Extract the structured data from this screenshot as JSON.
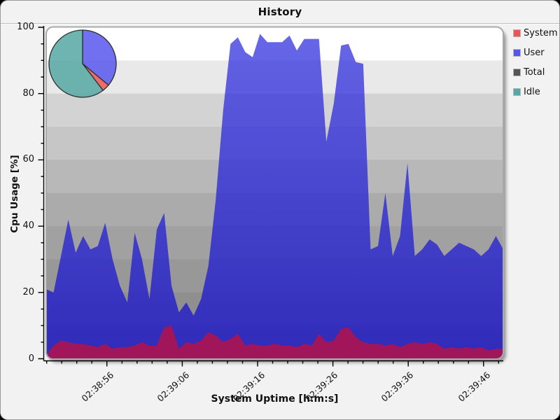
{
  "title": "History",
  "y_axis": {
    "label": "Cpu Usage [%]",
    "tick_labels": [
      "0",
      "20",
      "40",
      "60",
      "80",
      "100"
    ]
  },
  "x_axis": {
    "label": "System Uptime [h:m:s]",
    "tick_labels": [
      "02:38:56",
      "02:39:06",
      "02:39:16",
      "02:39:26",
      "02:39:36",
      "02:39:46"
    ]
  },
  "legend": {
    "items": [
      {
        "label": "System",
        "color": "#ee5555"
      },
      {
        "label": "User",
        "color": "#5757ee"
      },
      {
        "label": "Total",
        "color": "#555555"
      },
      {
        "label": "Idle",
        "color": "#55a8a4"
      }
    ]
  },
  "colors": {
    "user_area_top": "#3c3ce2",
    "user_area_bottom": "#1812c8",
    "user_area_opacity": 0.78,
    "system_area": "#a81455",
    "axis": "#000000",
    "plot_frame": "#a9a9a9",
    "plot_bands": [
      "#ffffff",
      "#e9e9e9",
      "#d3d3d3",
      "#c6c6c6",
      "#b8b8b8",
      "#ababab",
      "#a1a1a1",
      "#989898",
      "#8f8f8f",
      "#868686"
    ]
  },
  "chart_data": {
    "type": "area",
    "title": "History",
    "xlabel": "System Uptime [h:m:s]",
    "ylabel": "Cpu Usage [%]",
    "ylim": [
      0,
      100
    ],
    "grid": "horizontal shaded bands every 10%",
    "legend_position": "right",
    "x_tick_labels": [
      "02:38:56",
      "02:39:06",
      "02:39:16",
      "02:39:26",
      "02:39:36",
      "02:39:46"
    ],
    "y_tick_labels": [
      0,
      20,
      40,
      60,
      80,
      100
    ],
    "series": [
      {
        "name": "User",
        "values": [
          21,
          20,
          31,
          42,
          32,
          37,
          33,
          34,
          41,
          30,
          22,
          17,
          38,
          30,
          18,
          39,
          44,
          22,
          14,
          17,
          13,
          18,
          28,
          48,
          75,
          95,
          97,
          92.5,
          91,
          98,
          95.5,
          95.5,
          95.5,
          97.5,
          93,
          96.5,
          96.5,
          96.5,
          65.5,
          77,
          94.5,
          95,
          89.5,
          89,
          33,
          34,
          50,
          31,
          37,
          59,
          31,
          33,
          36,
          34.5,
          31,
          33,
          35,
          34,
          33,
          31,
          33,
          37,
          33
        ]
      },
      {
        "name": "System",
        "values": [
          1,
          4,
          5.5,
          5,
          4.5,
          4.5,
          4,
          3.5,
          4.5,
          3,
          3.5,
          3.5,
          4,
          5,
          4,
          4,
          9.5,
          10,
          3,
          5,
          4.5,
          5.5,
          8,
          7,
          5,
          6,
          7.5,
          4,
          4.5,
          4,
          4,
          4.5,
          4,
          4,
          3.5,
          4.5,
          4,
          7.5,
          5,
          5.5,
          9,
          9.5,
          6.5,
          5,
          4.5,
          4.5,
          4,
          4.5,
          3.5,
          4.5,
          5,
          4.5,
          5,
          4.5,
          3,
          3.5,
          3,
          3.5,
          3,
          3.5,
          2.5,
          3,
          3
        ]
      }
    ],
    "pie_inset": {
      "description": "pie in upper-left of plot, clockwise from 12 o'clock",
      "slices": [
        {
          "label": "User",
          "percent": 36.0
        },
        {
          "label": "System",
          "percent": 3.6
        },
        {
          "label": "Idle",
          "percent": 60.4
        }
      ]
    }
  }
}
